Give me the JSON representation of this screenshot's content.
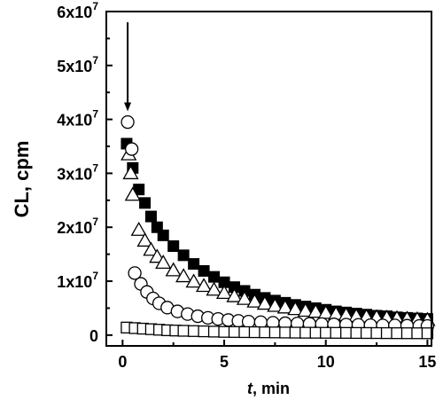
{
  "chart_data": {
    "type": "scatter",
    "title": "",
    "xlabel_var": "t",
    "xlabel_unit": ", min",
    "ylabel": "CL, cpm",
    "xlim": [
      -0.8,
      15.2
    ],
    "ylim": [
      -2000000,
      60000000
    ],
    "x_ticks": [
      {
        "value": 0,
        "label": "0"
      },
      {
        "value": 5,
        "label": "5"
      },
      {
        "value": 10,
        "label": "10"
      },
      {
        "value": 15,
        "label": "15"
      }
    ],
    "y_ticks": [
      {
        "value": 0,
        "mant": "0",
        "exp": ""
      },
      {
        "value": 10000000,
        "mant": "1x10",
        "exp": "7"
      },
      {
        "value": 20000000,
        "mant": "2x10",
        "exp": "7"
      },
      {
        "value": 30000000,
        "mant": "3x10",
        "exp": "7"
      },
      {
        "value": 40000000,
        "mant": "4x10",
        "exp": "7"
      },
      {
        "value": 50000000,
        "mant": "5x10",
        "exp": "7"
      },
      {
        "value": 60000000,
        "mant": "6x10",
        "exp": "7"
      }
    ],
    "grid": false,
    "legend": false,
    "annotation": {
      "type": "arrow",
      "x": 0.25,
      "y_from": 58000000,
      "y_to": 41500000
    },
    "series": [
      {
        "marker": "filled-square",
        "color": "#000000",
        "points": [
          [
            0.2,
            35500000
          ],
          [
            0.5,
            31000000
          ],
          [
            0.8,
            27000000
          ],
          [
            1.1,
            24500000
          ],
          [
            1.4,
            22000000
          ],
          [
            1.7,
            20000000
          ],
          [
            2.0,
            18500000
          ],
          [
            2.5,
            16500000
          ],
          [
            3.0,
            14800000
          ],
          [
            3.5,
            13200000
          ],
          [
            4.0,
            11900000
          ],
          [
            4.5,
            10800000
          ],
          [
            5.0,
            9800000
          ],
          [
            5.5,
            8900000
          ],
          [
            6.0,
            8200000
          ],
          [
            6.5,
            7500000
          ],
          [
            7.0,
            6900000
          ],
          [
            7.5,
            6400000
          ],
          [
            8.0,
            6000000
          ],
          [
            8.5,
            5600000
          ],
          [
            9.0,
            5300000
          ],
          [
            9.5,
            5000000
          ],
          [
            10.0,
            4700000
          ],
          [
            10.5,
            4400000
          ],
          [
            11.0,
            4200000
          ],
          [
            11.5,
            4000000
          ],
          [
            12.0,
            3800000
          ],
          [
            12.5,
            3600000
          ],
          [
            13.0,
            3500000
          ],
          [
            13.5,
            3300000
          ],
          [
            14.0,
            3200000
          ],
          [
            14.5,
            3100000
          ],
          [
            15.0,
            3000000
          ]
        ]
      },
      {
        "marker": "open-triangle",
        "color": "#000000",
        "points": [
          [
            0.3,
            33500000
          ],
          [
            0.4,
            30000000
          ],
          [
            0.5,
            26000000
          ],
          [
            0.8,
            19500000
          ],
          [
            1.1,
            17500000
          ],
          [
            1.4,
            15800000
          ],
          [
            1.7,
            14500000
          ],
          [
            2.0,
            13400000
          ],
          [
            2.5,
            12000000
          ],
          [
            3.0,
            10900000
          ],
          [
            3.5,
            9900000
          ],
          [
            4.0,
            9100000
          ],
          [
            4.5,
            8400000
          ],
          [
            5.0,
            7800000
          ],
          [
            5.5,
            7200000
          ],
          [
            6.0,
            6700000
          ],
          [
            6.5,
            6200000
          ],
          [
            7.0,
            5800000
          ],
          [
            7.5,
            5400000
          ],
          [
            8.0,
            5100000
          ],
          [
            8.5,
            4800000
          ],
          [
            9.0,
            4500000
          ],
          [
            9.5,
            4300000
          ],
          [
            10.0,
            4100000
          ],
          [
            10.5,
            3900000
          ],
          [
            11.0,
            3700000
          ],
          [
            11.5,
            3500000
          ],
          [
            12.0,
            3400000
          ],
          [
            12.5,
            3300000
          ],
          [
            13.0,
            3200000
          ],
          [
            13.5,
            3100000
          ],
          [
            14.0,
            3000000
          ],
          [
            14.5,
            2900000
          ],
          [
            15.0,
            2800000
          ]
        ]
      },
      {
        "marker": "open-circle",
        "color": "#000000",
        "points": [
          [
            0.25,
            39500000
          ],
          [
            0.45,
            34500000
          ],
          [
            0.6,
            11500000
          ],
          [
            0.9,
            9500000
          ],
          [
            1.2,
            8000000
          ],
          [
            1.5,
            6800000
          ],
          [
            1.8,
            5900000
          ],
          [
            2.2,
            5100000
          ],
          [
            2.7,
            4400000
          ],
          [
            3.2,
            3900000
          ],
          [
            3.7,
            3500000
          ],
          [
            4.2,
            3200000
          ],
          [
            4.7,
            3000000
          ],
          [
            5.2,
            2800000
          ],
          [
            5.7,
            2650000
          ],
          [
            6.2,
            2500000
          ],
          [
            6.8,
            2400000
          ],
          [
            7.4,
            2300000
          ],
          [
            8.0,
            2200000
          ],
          [
            8.6,
            2150000
          ],
          [
            9.2,
            2100000
          ],
          [
            9.8,
            2050000
          ],
          [
            10.4,
            2000000
          ],
          [
            11.0,
            1950000
          ],
          [
            11.6,
            1900000
          ],
          [
            12.2,
            1850000
          ],
          [
            12.8,
            1800000
          ],
          [
            13.4,
            1800000
          ],
          [
            14.0,
            1750000
          ],
          [
            14.6,
            1700000
          ],
          [
            15.0,
            1700000
          ]
        ]
      },
      {
        "marker": "open-square",
        "color": "#000000",
        "points": [
          [
            0.2,
            1400000
          ],
          [
            0.6,
            1300000
          ],
          [
            1.0,
            1200000
          ],
          [
            1.4,
            1100000
          ],
          [
            1.8,
            1000000
          ],
          [
            2.2,
            900000
          ],
          [
            2.6,
            850000
          ],
          [
            3.0,
            800000
          ],
          [
            3.5,
            750000
          ],
          [
            4.0,
            700000
          ],
          [
            4.5,
            650000
          ],
          [
            5.0,
            600000
          ],
          [
            5.5,
            580000
          ],
          [
            6.0,
            560000
          ],
          [
            6.5,
            540000
          ],
          [
            7.0,
            520000
          ],
          [
            7.5,
            500000
          ],
          [
            8.0,
            480000
          ],
          [
            8.5,
            460000
          ],
          [
            9.0,
            450000
          ],
          [
            9.5,
            440000
          ],
          [
            10.0,
            430000
          ],
          [
            10.5,
            420000
          ],
          [
            11.0,
            410000
          ],
          [
            11.5,
            400000
          ],
          [
            12.0,
            390000
          ],
          [
            12.5,
            380000
          ],
          [
            13.0,
            370000
          ],
          [
            13.5,
            360000
          ],
          [
            14.0,
            350000
          ],
          [
            14.5,
            345000
          ],
          [
            15.0,
            340000
          ]
        ]
      }
    ]
  }
}
